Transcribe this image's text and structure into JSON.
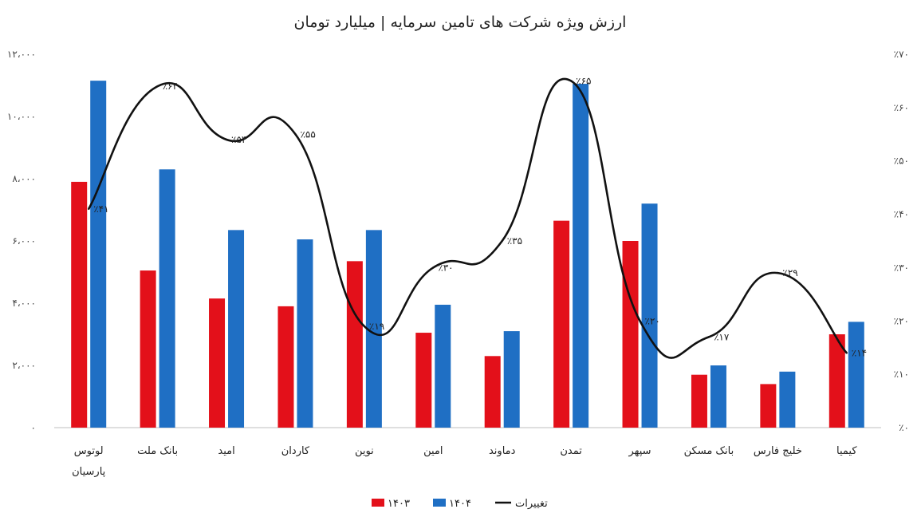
{
  "chart_data": {
    "type": "bar",
    "title": "ارزش ویژه شرکت های تامین سرمایه | میلیارد تومان",
    "categories": [
      "لوتوس پارسیان",
      "بانک ملت",
      "امید",
      "کاردان",
      "نوین",
      "امین",
      "دماوند",
      "تمدن",
      "سپهر",
      "بانک مسکن",
      "خلیج فارس",
      "کیمیا"
    ],
    "category_lines": [
      [
        "لوتوس",
        "پارسیان"
      ],
      [
        "بانک ملت"
      ],
      [
        "امید"
      ],
      [
        "کاردان"
      ],
      [
        "نوین"
      ],
      [
        "امین"
      ],
      [
        "دماوند"
      ],
      [
        "تمدن"
      ],
      [
        "سپهر"
      ],
      [
        "بانک مسکن"
      ],
      [
        "خلیج فارس"
      ],
      [
        "کیمیا"
      ]
    ],
    "series": [
      {
        "name": "۱۴۰۳",
        "color": "#e3101a",
        "values": [
          7900,
          5050,
          4150,
          3900,
          5350,
          3050,
          2300,
          6650,
          6000,
          1700,
          1400,
          3000
        ]
      },
      {
        "name": "۱۴۰۴",
        "color": "#1f6fc4",
        "values": [
          11150,
          8300,
          6350,
          6050,
          6350,
          3950,
          3100,
          11050,
          7200,
          2000,
          1800,
          3400
        ]
      }
    ],
    "line_series": {
      "name": "تغییرات",
      "color": "#111111",
      "values": [
        41,
        64,
        54,
        55,
        19,
        30,
        35,
        65,
        20,
        17,
        29,
        14
      ],
      "labels": [
        "٪۴۱",
        "٪۶۴",
        "٪۵۴",
        "٪۵۵",
        "٪۱۹",
        "٪۳۰",
        "٪۳۵",
        "٪۶۵",
        "٪۲۰",
        "٪۱۷",
        "٪۲۹",
        "٪۱۴"
      ]
    },
    "y_left": {
      "min": 0,
      "max": 12000,
      "ticks": [
        "۰",
        "۲،۰۰۰",
        "۴،۰۰۰",
        "۶،۰۰۰",
        "۸،۰۰۰",
        "۱۰،۰۰۰",
        "۱۲،۰۰۰"
      ]
    },
    "y_right": {
      "min": 0,
      "max": 70,
      "ticks": [
        "٪۰",
        "٪۱۰",
        "٪۲۰",
        "٪۳۰",
        "٪۴۰",
        "٪۵۰",
        "٪۶۰",
        "٪۷۰"
      ]
    },
    "legend": {
      "placement": "bottom-center",
      "items": [
        {
          "label": "۱۴۰۳",
          "color": "#e3101a",
          "kind": "bar"
        },
        {
          "label": "۱۴۰۴",
          "color": "#1f6fc4",
          "kind": "bar"
        },
        {
          "label": "تغییرات",
          "color": "#111111",
          "kind": "line"
        }
      ]
    },
    "grid": false
  }
}
